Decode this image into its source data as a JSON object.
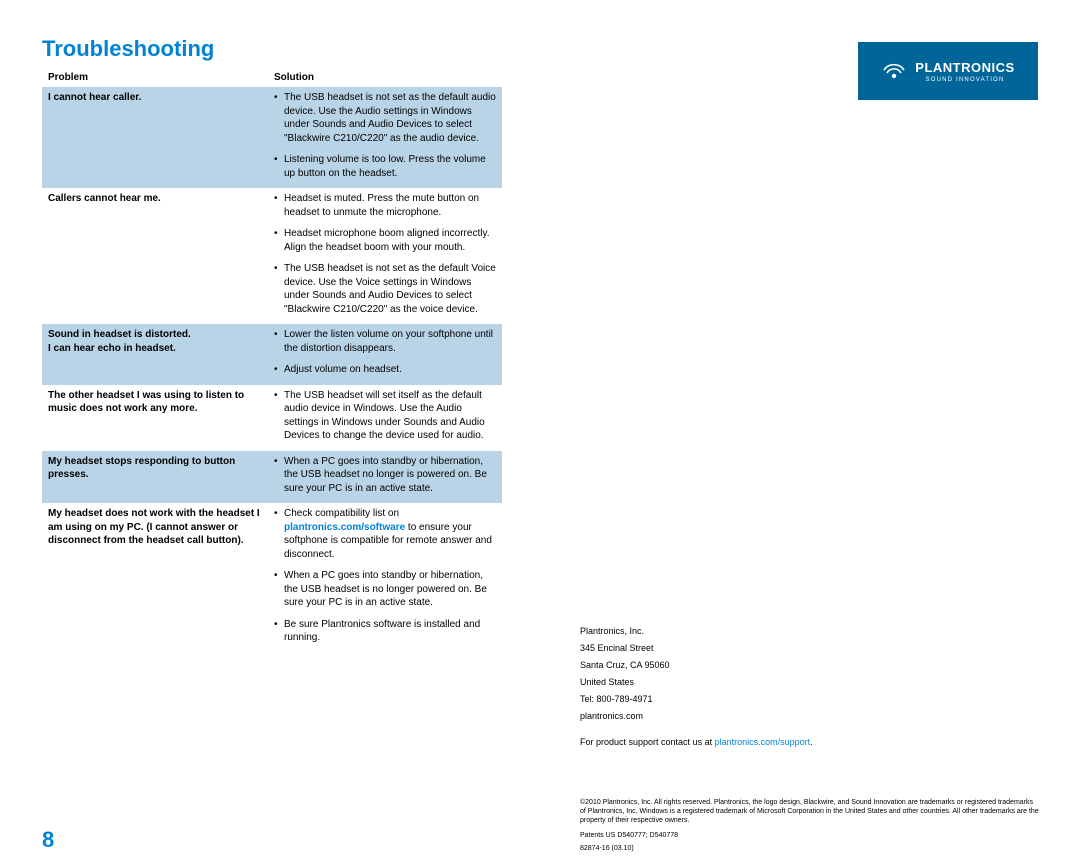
{
  "title": "Troubleshooting",
  "title_color": "#0083d6",
  "page_number": "8",
  "table": {
    "header": {
      "problem": "Problem",
      "solution": "Solution"
    },
    "shade_color": "#b9d4e7",
    "rows": [
      {
        "shaded": true,
        "problem": "I cannot hear caller.",
        "solutions": [
          "The USB headset is not set as the default audio device. Use the Audio settings in Windows under Sounds and Audio Devices to select \"Blackwire C210/C220\" as the audio device.",
          "Listening volume is too low. Press the volume up button on the headset."
        ]
      },
      {
        "shaded": false,
        "problem": "Callers cannot hear me.",
        "solutions": [
          "Headset is muted. Press the mute button on headset to unmute the microphone.",
          "Headset microphone boom aligned incorrectly. Align the headset boom with your mouth.",
          "The USB headset is not set as the default Voice device. Use the Voice settings in Windows under Sounds and Audio Devices to select \"Blackwire C210/C220\" as the voice device."
        ]
      },
      {
        "shaded": true,
        "problem": "Sound in headset is distorted.\nI can hear echo in headset.",
        "solutions": [
          "Lower the listen volume on your softphone until the distortion disappears.",
          "Adjust volume on headset."
        ]
      },
      {
        "shaded": false,
        "problem": "The other headset I was using to listen to music does not work any more.",
        "solutions": [
          "The USB headset will set itself as the default audio device in Windows. Use the Audio settings in Windows under Sounds and Audio Devices to change the device used for audio."
        ]
      },
      {
        "shaded": true,
        "problem": "My headset stops responding to button presses.",
        "solutions": [
          "When a PC goes into standby or hibernation, the USB headset no longer is powered on. Be sure your PC is in an active state."
        ]
      },
      {
        "shaded": false,
        "problem": "My headset does not work with the headset I am using on my PC. (I cannot answer or disconnect from the headset call button).",
        "solutions": [
          "Check compatibility list on |LINK|plantronics.com/software|/LINK| to ensure your softphone is compatible for remote answer and disconnect.",
          "When a PC goes into standby or hibernation, the USB headset is no longer powered on. Be sure your PC is in an active state.",
          "Be sure Plantronics software is installed and running."
        ]
      }
    ]
  },
  "logo": {
    "brand": "PLANTRONICS",
    "tagline": "SOUND INNOVATION",
    "bg_color": "#006699"
  },
  "contact": {
    "lines": [
      "Plantronics, Inc.",
      "345 Encinal Street",
      "Santa Cruz, CA 95060",
      "United States",
      "Tel: 800-789-4971",
      "plantronics.com"
    ],
    "support_prefix": "For product support contact us at ",
    "support_link": "plantronics.com/support",
    "support_suffix": "."
  },
  "legal": {
    "copyright": "©2010 Plantronics, Inc. All rights reserved. Plantronics, the logo design, Blackwire, and Sound Innovation are trademarks or registered trademarks of Plantronics, Inc. Windows is a registered trademark of Microsoft Corporation in the United States and other countries. All other trademarks are the property of their respective owners.",
    "patents": "Patents US D540777; D540778",
    "docnum": "82874-16 (03.10)"
  }
}
